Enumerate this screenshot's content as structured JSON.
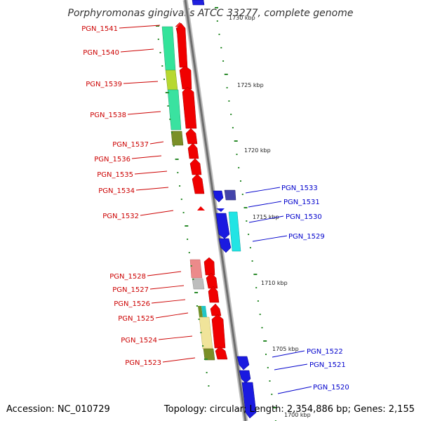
{
  "title": "Porphyromonas gingivalis ATCC 33277, complete genome",
  "footer": {
    "accession": "Accession: NC_010729",
    "summary": "Topology: circular; Length: 2,354,886 bp; Genes: 2,155"
  },
  "colors": {
    "forward_gene": "#e00000",
    "reverse_gene": "#0000dd",
    "left_label": "#cc0000",
    "right_label": "#0000cc",
    "tick_mark": "#2a8a2a",
    "backbone": "#888888"
  },
  "scale_labels": [
    "1730 kbp",
    "1725 kbp",
    "1720 kbp",
    "1715 kbp",
    "1710 kbp",
    "1705 kbp",
    "1700 kbp"
  ],
  "left_genes": [
    "PGN_1541",
    "PGN_1540",
    "PGN_1539",
    "PGN_1538",
    "PGN_1537",
    "PGN_1536",
    "PGN_1535",
    "PGN_1534",
    "PGN_1532",
    "PGN_1528",
    "PGN_1527",
    "PGN_1526",
    "PGN_1525",
    "PGN_1524",
    "PGN_1523"
  ],
  "right_genes": [
    "PGN_1533",
    "PGN_1531",
    "PGN_1530",
    "PGN_1529",
    "PGN_1522",
    "PGN_1521",
    "PGN_1520"
  ]
}
